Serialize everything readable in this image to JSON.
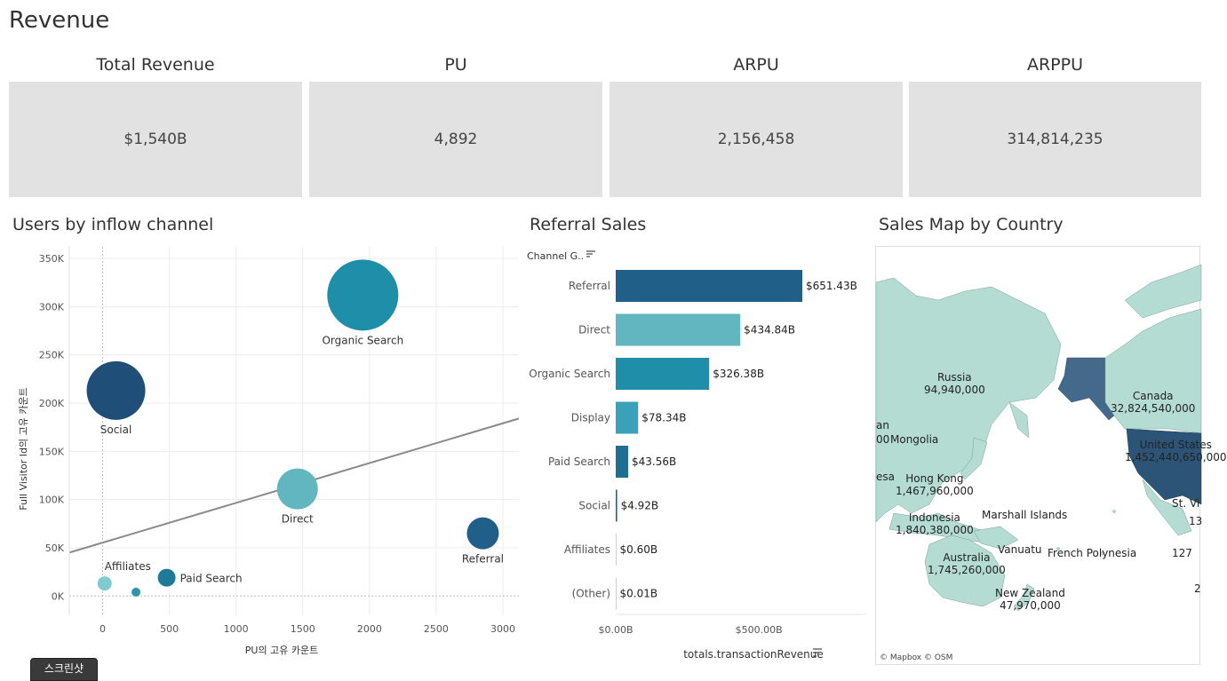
{
  "page": {
    "title": "Revenue"
  },
  "kpis": [
    {
      "label": "Total Revenue",
      "value": "$1,540B"
    },
    {
      "label": "PU",
      "value": "4,892"
    },
    {
      "label": "ARPU",
      "value": "2,156,458"
    },
    {
      "label": "ARPPU",
      "value": "314,814,235"
    }
  ],
  "colors": {
    "dark": "#1f4e79",
    "mid": "#1f8ea8",
    "light": "#62b6c0",
    "alaska": "#44698a",
    "land": "#b4dcd2",
    "us": "#2b5477"
  },
  "chart_data": [
    {
      "type": "scatter",
      "title": "Users by inflow channel",
      "xlabel": "PU의 고유 카운트",
      "ylabel": "Full Visitor Id의 고유 카운트",
      "xlim": [
        -250,
        3120
      ],
      "ylim": [
        -20000,
        362000
      ],
      "xticks": [
        0,
        500,
        1000,
        1500,
        2000,
        2500,
        3000
      ],
      "yticks": [
        0,
        50000,
        100000,
        150000,
        200000,
        250000,
        300000,
        350000
      ],
      "xtick_labels": [
        "0",
        "500",
        "1000",
        "1500",
        "2000",
        "2500",
        "3000"
      ],
      "ytick_labels": [
        "0K",
        "50K",
        "100K",
        "150K",
        "200K",
        "250K",
        "300K",
        "350K"
      ],
      "trendline": {
        "x": [
          -250,
          3120
        ],
        "y": [
          45000,
          184000
        ]
      },
      "points": [
        {
          "label": "Organic Search",
          "x": 1950,
          "y": 312000,
          "size": 40,
          "color": "#1f8ea8",
          "label_pos": "below"
        },
        {
          "label": "Social",
          "x": 100,
          "y": 213000,
          "size": 33,
          "color": "#1f4e79",
          "label_pos": "below"
        },
        {
          "label": "Direct",
          "x": 1460,
          "y": 111000,
          "size": 23,
          "color": "#62b6c0",
          "label_pos": "below"
        },
        {
          "label": "Referral",
          "x": 2850,
          "y": 65000,
          "size": 18,
          "color": "#1f5f88",
          "label_pos": "below"
        },
        {
          "label": "Paid Search",
          "x": 480,
          "y": 19000,
          "size": 10,
          "color": "#1f7a9a",
          "label_pos": "right"
        },
        {
          "label": "Affiliates",
          "x": 15,
          "y": 13000,
          "size": 8,
          "color": "#7fcbcf",
          "label_pos": "above"
        },
        {
          "label": "",
          "x": 250,
          "y": 4000,
          "size": 5,
          "color": "#2d95ad",
          "label_pos": "none"
        }
      ]
    },
    {
      "type": "bar",
      "orientation": "horizontal",
      "title": "Referral Sales",
      "header_label": "Channel G..",
      "xlabel": "totals.transactionRevenue",
      "xlim": [
        0,
        900
      ],
      "xticks": [
        0,
        500
      ],
      "xtick_labels": [
        "$0.00B",
        "$500.00B"
      ],
      "categories": [
        "Referral",
        "Direct",
        "Organic Search",
        "Display",
        "Paid Search",
        "Social",
        "Affiliates",
        "(Other)"
      ],
      "values": [
        651.43,
        434.84,
        326.38,
        78.34,
        43.56,
        4.92,
        0.6,
        0.01
      ],
      "value_labels": [
        "$651.43B",
        "$434.84B",
        "$326.38B",
        "$78.34B",
        "$43.56B",
        "$4.92B",
        "$0.60B",
        "$0.01B"
      ],
      "bar_colors": [
        "#1f5f88",
        "#62b6c0",
        "#1f8ea8",
        "#3aa2b8",
        "#1f6f93",
        "#1f5f88",
        "#62b6c0",
        "#62b6c0"
      ]
    }
  ],
  "map": {
    "title": "Sales Map by Country",
    "attribution": "© Mapbox  © OSM",
    "labels": [
      {
        "name": "Russia",
        "value": "94,940,000"
      },
      {
        "name": "Canada",
        "value": "32,824,540,000"
      },
      {
        "name": "United States",
        "value": "1,452,440,650,000"
      },
      {
        "name": "Mongolia",
        "value": ""
      },
      {
        "name": "Hong Kong",
        "value": "1,467,960,000"
      },
      {
        "name": "Indonesia",
        "value": "1,840,380,000"
      },
      {
        "name": "Marshall Islands",
        "value": ""
      },
      {
        "name": "Vanuatu",
        "value": ""
      },
      {
        "name": "French Polynesia",
        "value": ""
      },
      {
        "name": "Australia",
        "value": "1,745,260,000"
      },
      {
        "name": "New Zealand",
        "value": "47,970,000"
      },
      {
        "name": "an",
        "value": ""
      },
      {
        "name": "00",
        "value": ""
      },
      {
        "name": "esa",
        "value": ""
      },
      {
        "name": "St. Vi",
        "value": ""
      },
      {
        "name": "13",
        "value": ""
      },
      {
        "name": "127",
        "value": ""
      },
      {
        "name": "2",
        "value": ""
      }
    ]
  },
  "footer": {
    "screenshot_button": "스크린샷"
  }
}
